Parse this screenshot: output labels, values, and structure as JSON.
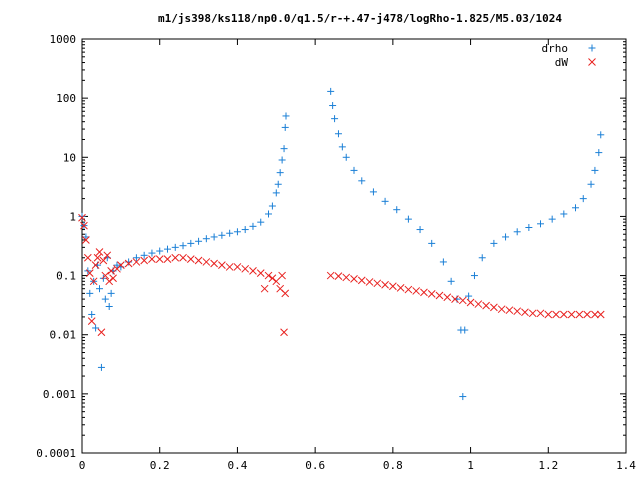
{
  "chart_data": {
    "type": "scatter",
    "title": "m1/js398/ks118/np0.0/q1.5/r-+.47-j478/logRho-1.825/M5.03/1024",
    "xlabel": "",
    "ylabel": "",
    "xlim": [
      0,
      1.4
    ],
    "ylim": [
      0.0001,
      1000
    ],
    "y_scale": "log",
    "x_ticks": [
      0,
      0.2,
      0.4,
      0.6,
      0.8,
      1,
      1.2,
      1.4
    ],
    "x_tick_labels": [
      "0",
      "0.2",
      "0.4",
      "0.6",
      "0.8",
      "1",
      "1.2",
      "1.4"
    ],
    "y_ticks": [
      0.0001,
      0.001,
      0.01,
      0.1,
      1,
      10,
      100,
      1000
    ],
    "y_tick_labels": [
      "0.0001",
      "0.001",
      "0.01",
      "0.1",
      "1",
      "10",
      "100",
      "1000"
    ],
    "grid": false,
    "legend_position": "top-right",
    "series": [
      {
        "name": "drho",
        "marker": "plus",
        "color": "#1a7fd6",
        "points": [
          [
            0.0,
            1.0
          ],
          [
            0.005,
            0.7
          ],
          [
            0.01,
            0.45
          ],
          [
            0.015,
            0.12
          ],
          [
            0.02,
            0.05
          ],
          [
            0.025,
            0.022
          ],
          [
            0.03,
            0.08
          ],
          [
            0.035,
            0.013
          ],
          [
            0.04,
            0.15
          ],
          [
            0.045,
            0.06
          ],
          [
            0.05,
            0.0028
          ],
          [
            0.055,
            0.09
          ],
          [
            0.06,
            0.04
          ],
          [
            0.065,
            0.2
          ],
          [
            0.07,
            0.03
          ],
          [
            0.075,
            0.05
          ],
          [
            0.08,
            0.12
          ],
          [
            0.09,
            0.15
          ],
          [
            0.1,
            0.14
          ],
          [
            0.12,
            0.17
          ],
          [
            0.14,
            0.2
          ],
          [
            0.16,
            0.22
          ],
          [
            0.18,
            0.24
          ],
          [
            0.2,
            0.26
          ],
          [
            0.22,
            0.28
          ],
          [
            0.24,
            0.3
          ],
          [
            0.26,
            0.32
          ],
          [
            0.28,
            0.35
          ],
          [
            0.3,
            0.38
          ],
          [
            0.32,
            0.42
          ],
          [
            0.34,
            0.45
          ],
          [
            0.36,
            0.48
          ],
          [
            0.38,
            0.52
          ],
          [
            0.4,
            0.55
          ],
          [
            0.42,
            0.6
          ],
          [
            0.44,
            0.68
          ],
          [
            0.46,
            0.8
          ],
          [
            0.48,
            1.1
          ],
          [
            0.49,
            1.5
          ],
          [
            0.5,
            2.5
          ],
          [
            0.505,
            3.5
          ],
          [
            0.51,
            5.5
          ],
          [
            0.515,
            9
          ],
          [
            0.52,
            14
          ],
          [
            0.523,
            32
          ],
          [
            0.525,
            50
          ],
          [
            0.64,
            130
          ],
          [
            0.645,
            75
          ],
          [
            0.65,
            45
          ],
          [
            0.66,
            25
          ],
          [
            0.67,
            15
          ],
          [
            0.68,
            10
          ],
          [
            0.7,
            6
          ],
          [
            0.72,
            4
          ],
          [
            0.75,
            2.6
          ],
          [
            0.78,
            1.8
          ],
          [
            0.81,
            1.3
          ],
          [
            0.84,
            0.9
          ],
          [
            0.87,
            0.6
          ],
          [
            0.9,
            0.35
          ],
          [
            0.93,
            0.17
          ],
          [
            0.95,
            0.08
          ],
          [
            0.965,
            0.04
          ],
          [
            0.975,
            0.012
          ],
          [
            0.98,
            0.0009
          ],
          [
            0.985,
            0.012
          ],
          [
            0.995,
            0.045
          ],
          [
            1.01,
            0.1
          ],
          [
            1.03,
            0.2
          ],
          [
            1.06,
            0.35
          ],
          [
            1.09,
            0.45
          ],
          [
            1.12,
            0.55
          ],
          [
            1.15,
            0.65
          ],
          [
            1.18,
            0.75
          ],
          [
            1.21,
            0.9
          ],
          [
            1.24,
            1.1
          ],
          [
            1.27,
            1.4
          ],
          [
            1.29,
            2.0
          ],
          [
            1.31,
            3.5
          ],
          [
            1.32,
            6
          ],
          [
            1.33,
            12
          ],
          [
            1.335,
            24
          ]
        ]
      },
      {
        "name": "dW",
        "marker": "x",
        "color": "#e8201e",
        "points": [
          [
            0.0,
            0.95
          ],
          [
            0.005,
            0.7
          ],
          [
            0.01,
            0.4
          ],
          [
            0.015,
            0.2
          ],
          [
            0.02,
            0.11
          ],
          [
            0.025,
            0.017
          ],
          [
            0.03,
            0.08
          ],
          [
            0.035,
            0.15
          ],
          [
            0.04,
            0.2
          ],
          [
            0.045,
            0.25
          ],
          [
            0.05,
            0.011
          ],
          [
            0.055,
            0.18
          ],
          [
            0.06,
            0.1
          ],
          [
            0.065,
            0.22
          ],
          [
            0.07,
            0.08
          ],
          [
            0.075,
            0.12
          ],
          [
            0.08,
            0.09
          ],
          [
            0.09,
            0.13
          ],
          [
            0.1,
            0.15
          ],
          [
            0.12,
            0.16
          ],
          [
            0.14,
            0.17
          ],
          [
            0.16,
            0.18
          ],
          [
            0.18,
            0.19
          ],
          [
            0.2,
            0.19
          ],
          [
            0.22,
            0.19
          ],
          [
            0.24,
            0.2
          ],
          [
            0.26,
            0.2
          ],
          [
            0.28,
            0.19
          ],
          [
            0.3,
            0.18
          ],
          [
            0.32,
            0.17
          ],
          [
            0.34,
            0.16
          ],
          [
            0.36,
            0.15
          ],
          [
            0.38,
            0.14
          ],
          [
            0.4,
            0.14
          ],
          [
            0.42,
            0.13
          ],
          [
            0.44,
            0.12
          ],
          [
            0.46,
            0.11
          ],
          [
            0.47,
            0.06
          ],
          [
            0.48,
            0.1
          ],
          [
            0.49,
            0.09
          ],
          [
            0.5,
            0.08
          ],
          [
            0.51,
            0.06
          ],
          [
            0.515,
            0.1
          ],
          [
            0.52,
            0.011
          ],
          [
            0.523,
            0.05
          ],
          [
            0.64,
            0.1
          ],
          [
            0.66,
            0.098
          ],
          [
            0.68,
            0.093
          ],
          [
            0.7,
            0.088
          ],
          [
            0.72,
            0.083
          ],
          [
            0.74,
            0.078
          ],
          [
            0.76,
            0.074
          ],
          [
            0.78,
            0.07
          ],
          [
            0.8,
            0.066
          ],
          [
            0.82,
            0.062
          ],
          [
            0.84,
            0.058
          ],
          [
            0.86,
            0.055
          ],
          [
            0.88,
            0.052
          ],
          [
            0.9,
            0.049
          ],
          [
            0.92,
            0.046
          ],
          [
            0.94,
            0.043
          ],
          [
            0.96,
            0.04
          ],
          [
            0.98,
            0.038
          ],
          [
            1.0,
            0.035
          ],
          [
            1.02,
            0.033
          ],
          [
            1.04,
            0.031
          ],
          [
            1.06,
            0.029
          ],
          [
            1.08,
            0.027
          ],
          [
            1.1,
            0.026
          ],
          [
            1.12,
            0.025
          ],
          [
            1.14,
            0.024
          ],
          [
            1.16,
            0.023
          ],
          [
            1.18,
            0.023
          ],
          [
            1.2,
            0.022
          ],
          [
            1.22,
            0.022
          ],
          [
            1.24,
            0.022
          ],
          [
            1.26,
            0.022
          ],
          [
            1.28,
            0.022
          ],
          [
            1.3,
            0.022
          ],
          [
            1.32,
            0.022
          ],
          [
            1.335,
            0.022
          ]
        ]
      }
    ]
  }
}
